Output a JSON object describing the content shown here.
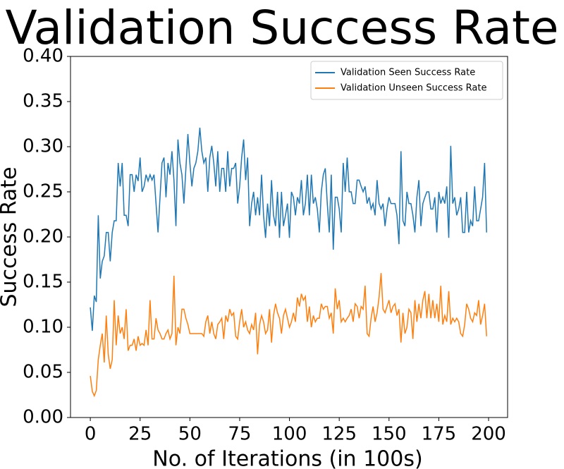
{
  "chart_data": {
    "type": "line",
    "title": "Validation Success Rate",
    "xlabel": "No. of Iterations (in 100s)",
    "ylabel": "Success Rate",
    "xlim": [
      -9.95,
      209.55
    ],
    "ylim": [
      0,
      0.4
    ],
    "xticks": [
      0,
      25,
      50,
      75,
      100,
      125,
      150,
      175,
      200
    ],
    "yticks": [
      {
        "value": 0,
        "label": "0.00"
      },
      {
        "value": 0.05,
        "label": "0.05"
      },
      {
        "value": 0.1,
        "label": "0.10"
      },
      {
        "value": 0.15,
        "label": "0.15"
      },
      {
        "value": 0.2,
        "label": "0.20"
      },
      {
        "value": 0.25,
        "label": "0.25"
      },
      {
        "value": 0.3,
        "label": "0.30"
      },
      {
        "value": 0.35,
        "label": "0.35"
      },
      {
        "value": 0.4,
        "label": "0.40"
      }
    ],
    "legend": "upper right",
    "x": [
      0,
      1,
      2,
      3,
      4,
      5,
      6,
      7,
      8,
      9,
      10,
      11,
      12,
      13,
      14,
      15,
      16,
      17,
      18,
      19,
      20,
      21,
      22,
      23,
      24,
      25,
      26,
      27,
      28,
      29,
      30,
      31,
      32,
      33,
      34,
      35,
      36,
      37,
      38,
      39,
      40,
      41,
      42,
      43,
      44,
      45,
      46,
      47,
      48,
      49,
      50,
      51,
      52,
      53,
      54,
      55,
      56,
      57,
      58,
      59,
      60,
      61,
      62,
      63,
      64,
      65,
      66,
      67,
      68,
      69,
      70,
      71,
      72,
      73,
      74,
      75,
      76,
      77,
      78,
      79,
      80,
      81,
      82,
      83,
      84,
      85,
      86,
      87,
      88,
      89,
      90,
      91,
      92,
      93,
      94,
      95,
      96,
      97,
      98,
      99,
      100,
      101,
      102,
      103,
      104,
      105,
      106,
      107,
      108,
      109,
      110,
      111,
      112,
      113,
      114,
      115,
      116,
      117,
      118,
      119,
      120,
      121,
      122,
      123,
      124,
      125,
      126,
      127,
      128,
      129,
      130,
      131,
      132,
      133,
      134,
      135,
      136,
      137,
      138,
      139,
      140,
      141,
      142,
      143,
      144,
      145,
      146,
      147,
      148,
      149,
      150,
      151,
      152,
      153,
      154,
      155,
      156,
      157,
      158,
      159,
      160,
      161,
      162,
      163,
      164,
      165,
      166,
      167,
      168,
      169,
      170,
      171,
      172,
      173,
      174,
      175,
      176,
      177,
      178,
      179,
      180,
      181,
      182,
      183,
      184,
      185,
      186,
      187,
      188,
      189,
      190,
      191,
      192,
      193,
      194,
      195,
      196,
      197,
      198,
      199
    ],
    "series": [
      {
        "name": "Validation Seen Success Rate",
        "color": "#1f77b4",
        "values": [
          0.122,
          0.096,
          0.135,
          0.128,
          0.224,
          0.154,
          0.173,
          0.179,
          0.205,
          0.205,
          0.173,
          0.205,
          0.218,
          0.218,
          0.282,
          0.256,
          0.282,
          0.224,
          0.224,
          0.212,
          0.269,
          0.269,
          0.25,
          0.269,
          0.262,
          0.288,
          0.25,
          0.256,
          0.269,
          0.262,
          0.269,
          0.263,
          0.269,
          0.237,
          0.205,
          0.244,
          0.282,
          0.288,
          0.244,
          0.282,
          0.269,
          0.295,
          0.263,
          0.212,
          0.308,
          0.282,
          0.269,
          0.237,
          0.276,
          0.314,
          0.282,
          0.256,
          0.276,
          0.282,
          0.295,
          0.321,
          0.295,
          0.282,
          0.288,
          0.25,
          0.288,
          0.301,
          0.282,
          0.256,
          0.295,
          0.25,
          0.276,
          0.276,
          0.25,
          0.295,
          0.256,
          0.276,
          0.276,
          0.282,
          0.237,
          0.256,
          0.288,
          0.308,
          0.263,
          0.288,
          0.212,
          0.237,
          0.25,
          0.224,
          0.244,
          0.224,
          0.269,
          0.224,
          0.199,
          0.237,
          0.212,
          0.263,
          0.224,
          0.212,
          0.25,
          0.199,
          0.25,
          0.212,
          0.224,
          0.237,
          0.199,
          0.25,
          0.244,
          0.224,
          0.244,
          0.237,
          0.263,
          0.224,
          0.237,
          0.269,
          0.224,
          0.269,
          0.237,
          0.244,
          0.231,
          0.205,
          0.25,
          0.269,
          0.276,
          0.237,
          0.205,
          0.269,
          0.186,
          0.244,
          0.244,
          0.231,
          0.205,
          0.282,
          0.25,
          0.288,
          0.25,
          0.25,
          0.237,
          0.237,
          0.263,
          0.263,
          0.256,
          0.25,
          0.256,
          0.237,
          0.244,
          0.231,
          0.237,
          0.224,
          0.263,
          0.237,
          0.231,
          0.237,
          0.212,
          0.231,
          0.244,
          0.237,
          0.237,
          0.237,
          0.224,
          0.192,
          0.295,
          0.218,
          0.212,
          0.25,
          0.237,
          0.237,
          0.224,
          0.205,
          0.244,
          0.263,
          0.212,
          0.237,
          0.244,
          0.25,
          0.25,
          0.231,
          0.231,
          0.244,
          0.205,
          0.25,
          0.237,
          0.244,
          0.237,
          0.256,
          0.199,
          0.301,
          0.237,
          0.244,
          0.224,
          0.231,
          0.244,
          0.205,
          0.205,
          0.25,
          0.205,
          0.218,
          0.212,
          0.256,
          0.218,
          0.218,
          0.231,
          0.244,
          0.282,
          0.205
        ]
      },
      {
        "name": "Validation Unseen Success Rate",
        "color": "#ff7f0e",
        "values": [
          0.046,
          0.029,
          0.024,
          0.03,
          0.064,
          0.08,
          0.093,
          0.061,
          0.113,
          0.07,
          0.054,
          0.064,
          0.13,
          0.08,
          0.113,
          0.093,
          0.1,
          0.087,
          0.12,
          0.074,
          0.08,
          0.08,
          0.087,
          0.074,
          0.09,
          0.08,
          0.082,
          0.08,
          0.097,
          0.08,
          0.13,
          0.087,
          0.087,
          0.11,
          0.097,
          0.093,
          0.087,
          0.087,
          0.093,
          0.097,
          0.087,
          0.093,
          0.157,
          0.08,
          0.1,
          0.093,
          0.12,
          0.12,
          0.11,
          0.103,
          0.093,
          0.093,
          0.093,
          0.093,
          0.093,
          0.093,
          0.093,
          0.09,
          0.106,
          0.113,
          0.093,
          0.106,
          0.093,
          0.087,
          0.103,
          0.106,
          0.11,
          0.087,
          0.113,
          0.106,
          0.12,
          0.113,
          0.116,
          0.09,
          0.087,
          0.106,
          0.12,
          0.1,
          0.106,
          0.097,
          0.093,
          0.103,
          0.097,
          0.116,
          0.07,
          0.103,
          0.113,
          0.106,
          0.093,
          0.097,
          0.12,
          0.083,
          0.113,
          0.126,
          0.116,
          0.11,
          0.093,
          0.113,
          0.12,
          0.11,
          0.1,
          0.106,
          0.116,
          0.106,
          0.133,
          0.123,
          0.137,
          0.13,
          0.134,
          0.106,
          0.123,
          0.1,
          0.113,
          0.106,
          0.11,
          0.11,
          0.126,
          0.12,
          0.123,
          0.123,
          0.11,
          0.116,
          0.093,
          0.143,
          0.12,
          0.13,
          0.106,
          0.11,
          0.106,
          0.11,
          0.113,
          0.12,
          0.106,
          0.126,
          0.123,
          0.11,
          0.123,
          0.12,
          0.146,
          0.093,
          0.09,
          0.11,
          0.123,
          0.106,
          0.116,
          0.133,
          0.16,
          0.12,
          0.116,
          0.123,
          0.13,
          0.116,
          0.123,
          0.126,
          0.113,
          0.12,
          0.083,
          0.116,
          0.093,
          0.1,
          0.12,
          0.116,
          0.087,
          0.13,
          0.106,
          0.126,
          0.11,
          0.13,
          0.14,
          0.11,
          0.137,
          0.11,
          0.13,
          0.11,
          0.126,
          0.106,
          0.146,
          0.103,
          0.113,
          0.106,
          0.14,
          0.103,
          0.11,
          0.106,
          0.11,
          0.106,
          0.093,
          0.09,
          0.103,
          0.126,
          0.12,
          0.11,
          0.106,
          0.116,
          0.113,
          0.13,
          0.103,
          0.113,
          0.126,
          0.09
        ]
      }
    ]
  }
}
